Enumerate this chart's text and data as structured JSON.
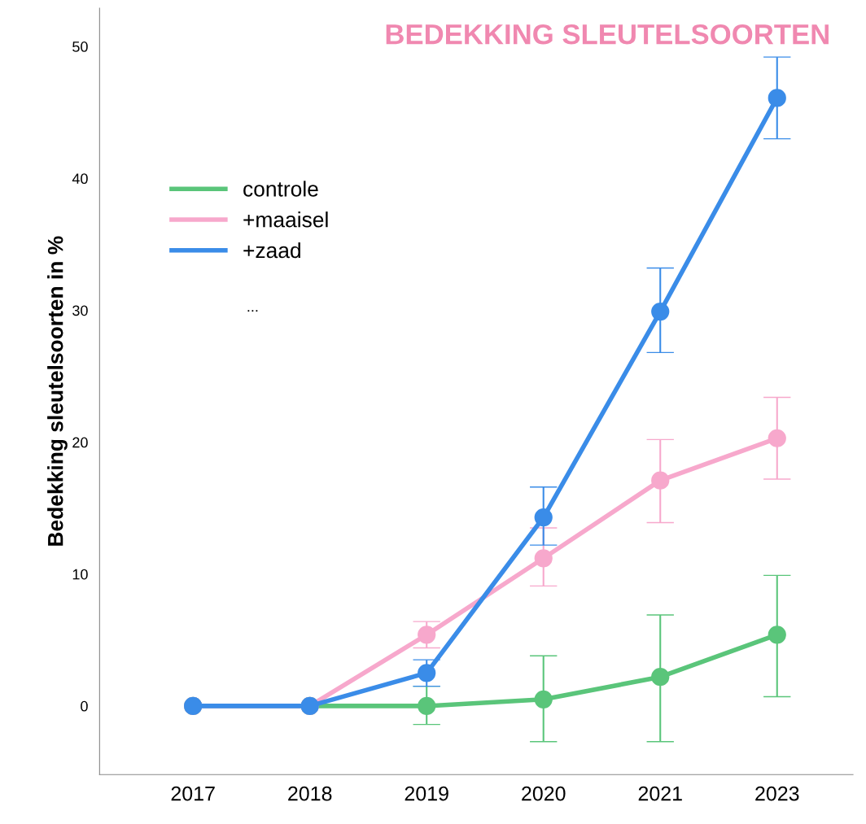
{
  "chart_data": {
    "type": "line",
    "title": "BEDEKKING SLEUTELSOORTEN",
    "ylabel": "Bedekking sleutelsoorten in %",
    "categories": [
      "2017",
      "2018",
      "2019",
      "2020",
      "2021",
      "2023"
    ],
    "series": [
      {
        "name": "controle",
        "color": "#5ac57a",
        "values": [
          0,
          0,
          0,
          0.5,
          2.2,
          5.4
        ],
        "errors": [
          null,
          null,
          [
            -1.4,
            1.5
          ],
          [
            -2.7,
            3.8
          ],
          [
            -2.7,
            6.9
          ],
          [
            0.7,
            9.9
          ]
        ]
      },
      {
        "name": "+maaisel",
        "color": "#f7a8cc",
        "values": [
          0,
          0,
          5.4,
          11.2,
          17.1,
          20.3
        ],
        "errors": [
          null,
          null,
          [
            4.4,
            6.4
          ],
          [
            9.1,
            13.5
          ],
          [
            13.9,
            20.2
          ],
          [
            17.2,
            23.4
          ]
        ]
      },
      {
        "name": "+zaad",
        "color": "#3a8ce8",
        "values": [
          0,
          0,
          2.5,
          14.3,
          29.9,
          46.1
        ],
        "errors": [
          null,
          null,
          [
            1.5,
            3.5
          ],
          [
            12.2,
            16.6
          ],
          [
            26.8,
            33.2
          ],
          [
            43.0,
            49.2
          ]
        ]
      }
    ],
    "annotations": [
      "..."
    ],
    "ylim": [
      -5.2,
      52.9
    ],
    "yticks": [
      0,
      10,
      20,
      30,
      40,
      50
    ],
    "marker": "circle",
    "line_style": "solid",
    "grid": false,
    "legend": "top left"
  }
}
